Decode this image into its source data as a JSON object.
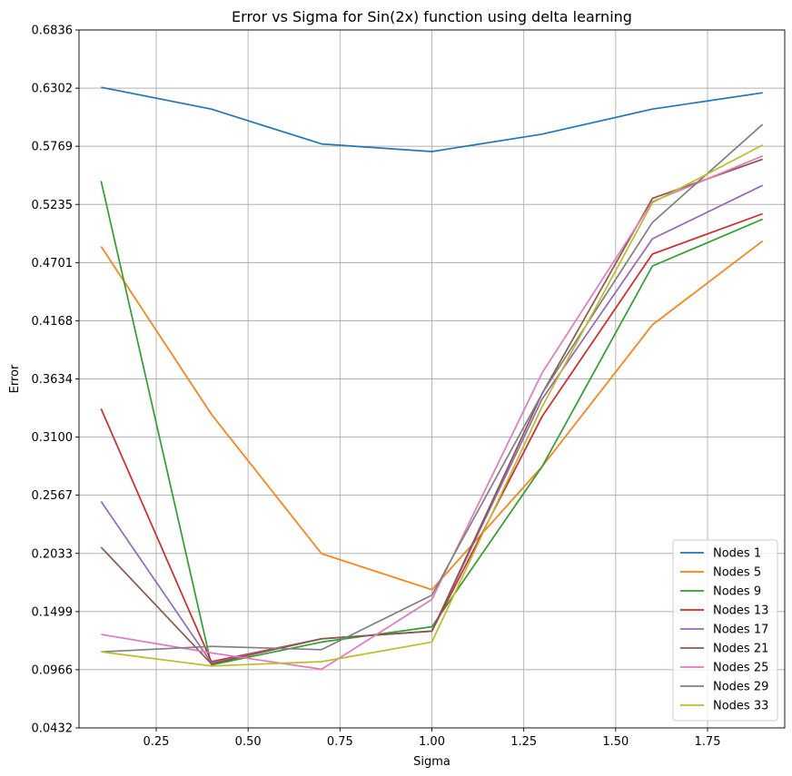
{
  "chart_data": {
    "type": "line",
    "title": "Error vs Sigma for Sin(2x) function using delta learning",
    "xlabel": "Sigma",
    "ylabel": "Error",
    "xlim": [
      0.04,
      1.96
    ],
    "ylim": [
      0.0432,
      0.6836
    ],
    "xticks": [
      "0.25",
      "0.50",
      "0.75",
      "1.00",
      "1.25",
      "1.50",
      "1.75"
    ],
    "yticks": [
      "0.0432",
      "0.0966",
      "0.1499",
      "0.2033",
      "0.2567",
      "0.3100",
      "0.3634",
      "0.4168",
      "0.4701",
      "0.5235",
      "0.5769",
      "0.6302",
      "0.6836"
    ],
    "grid": true,
    "legend_position": "lower-right",
    "x": [
      0.1,
      0.4,
      0.7,
      1.0,
      1.3,
      1.6,
      1.9
    ],
    "series": [
      {
        "name": "Nodes 1",
        "color": "#1f77b4",
        "values": [
          0.631,
          0.611,
          0.579,
          0.572,
          0.588,
          0.611,
          0.626
        ]
      },
      {
        "name": "Nodes 5",
        "color": "#ff7f0e",
        "values": [
          0.485,
          0.331,
          0.203,
          0.17,
          0.283,
          0.413,
          0.49
        ]
      },
      {
        "name": "Nodes 9",
        "color": "#2ca02c",
        "values": [
          0.545,
          0.101,
          0.122,
          0.136,
          0.283,
          0.467,
          0.51
        ]
      },
      {
        "name": "Nodes 13",
        "color": "#d62728",
        "values": [
          0.336,
          0.104,
          0.125,
          0.132,
          0.329,
          0.478,
          0.515
        ]
      },
      {
        "name": "Nodes 17",
        "color": "#9467bd",
        "values": [
          0.251,
          0.103,
          0.125,
          0.132,
          0.345,
          0.492,
          0.541
        ]
      },
      {
        "name": "Nodes 21",
        "color": "#8c564b",
        "values": [
          0.209,
          0.102,
          0.125,
          0.132,
          0.35,
          0.529,
          0.565
        ]
      },
      {
        "name": "Nodes 25",
        "color": "#e377c2",
        "values": [
          0.129,
          0.112,
          0.097,
          0.161,
          0.369,
          0.526,
          0.568
        ]
      },
      {
        "name": "Nodes 29",
        "color": "#7f7f7f",
        "values": [
          0.113,
          0.118,
          0.115,
          0.165,
          0.35,
          0.507,
          0.597
        ]
      },
      {
        "name": "Nodes 33",
        "color": "#bcbd22",
        "values": [
          0.113,
          0.1,
          0.104,
          0.122,
          0.338,
          0.525,
          0.578
        ]
      }
    ]
  }
}
